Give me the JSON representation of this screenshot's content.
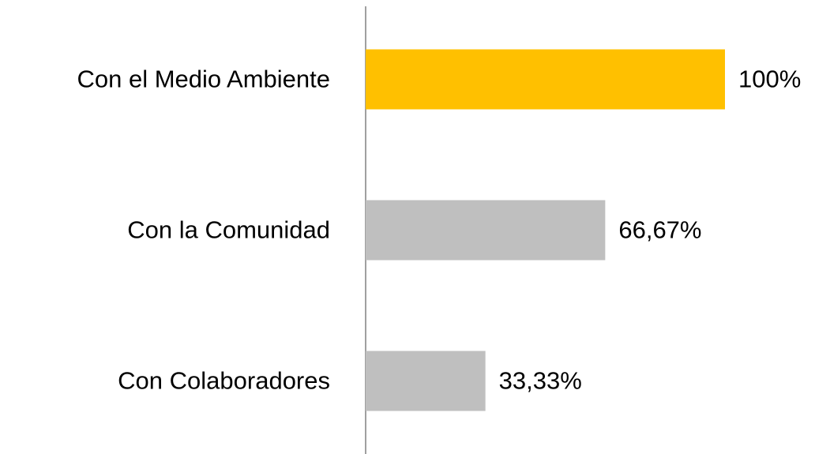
{
  "chart_data": {
    "type": "barh",
    "categories": [
      "Con el Medio Ambiente",
      "Con la Comunidad",
      "Con Colaboradores"
    ],
    "values": [
      100,
      66.67,
      33.33
    ],
    "value_labels": [
      "100%",
      "66,67%",
      "33,33%"
    ],
    "colors": [
      "#FFC000",
      "#BFBFBF",
      "#BFBFBF"
    ],
    "xlim": [
      0,
      100
    ]
  }
}
